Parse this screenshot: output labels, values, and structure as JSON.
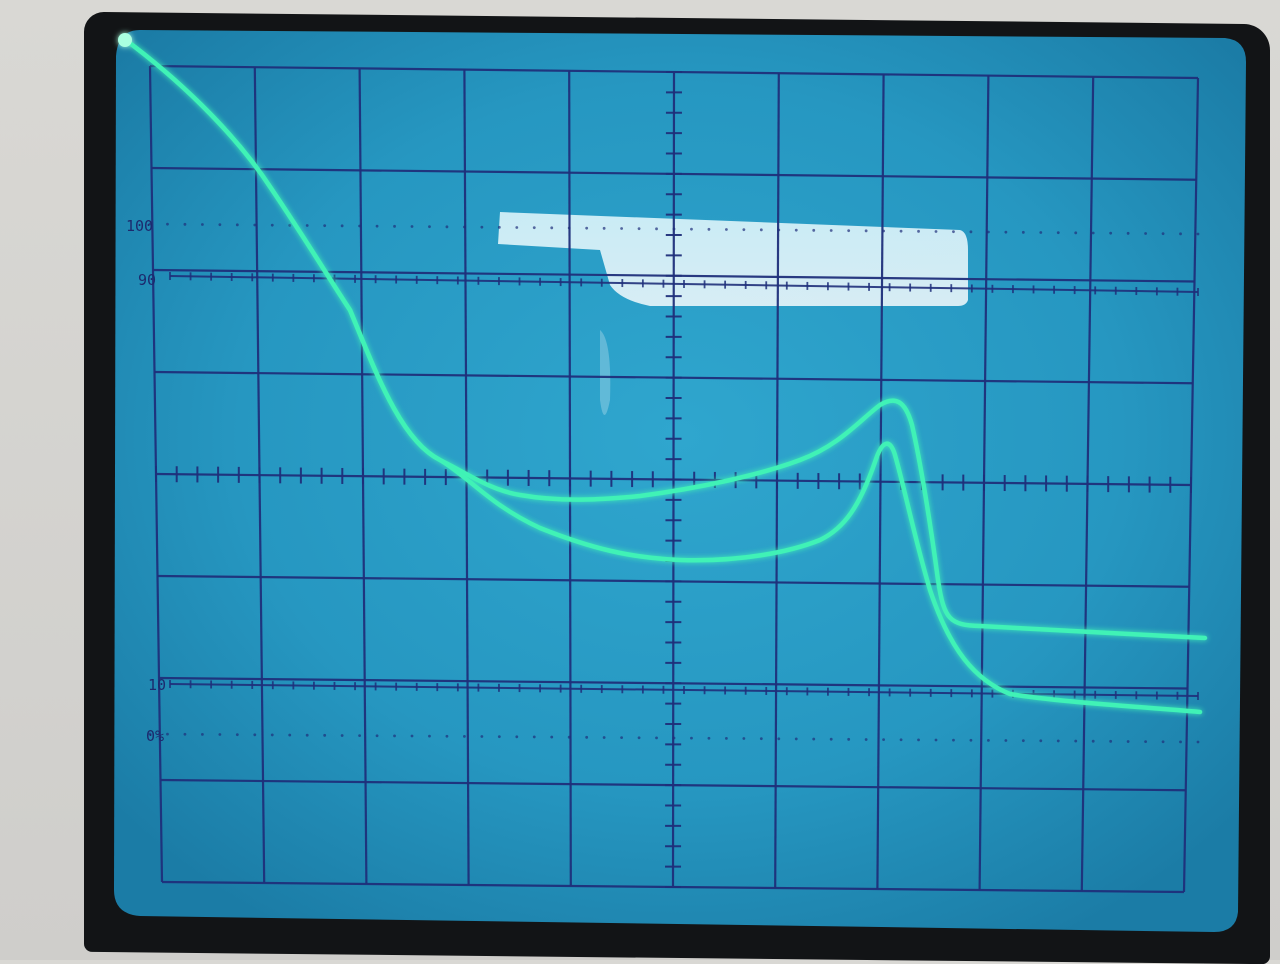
{
  "graticule": {
    "labels": [
      {
        "text": "100",
        "level": "100"
      },
      {
        "text": "90",
        "level": "90"
      },
      {
        "text": "10",
        "level": "10"
      },
      {
        "text": "0%",
        "level": "0"
      }
    ]
  },
  "colors": {
    "screen": "#2a9cc6",
    "grid": "#1f2f7a",
    "trace": "#3ff0b4",
    "bezel": "#121416",
    "case": "#d6d5d1"
  }
}
